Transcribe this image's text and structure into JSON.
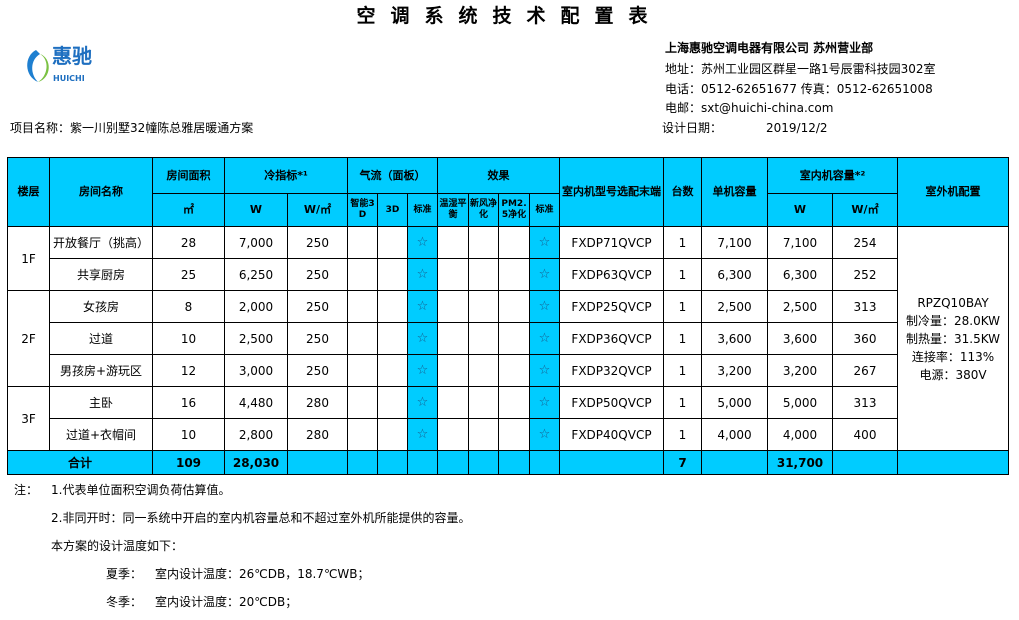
{
  "title": "空调系统技术配置表",
  "logo": {
    "text_cn": "惠驰",
    "text_en": "HUICHI"
  },
  "company": {
    "name": "上海惠驰空调电器有限公司 苏州营业部",
    "address": "地址：苏州工业园区群星一路1号辰雷科技园302室",
    "phone": "电话：0512-62651677 传真：0512-62651008",
    "email": "电邮：sxt@huichi-china.com",
    "date_label": "设计日期：",
    "date": "2019/12/2"
  },
  "project": "项目名称：紫一川别墅32幢陈总雅居暖通方案",
  "header": {
    "floor": "楼层",
    "room": "房间名称",
    "area": "房间面积",
    "area_unit": "㎡",
    "cooling": "冷指标*¹",
    "w": "W",
    "wm2": "W/㎡",
    "airflow": "气流（面板）",
    "smart3d": "智能3D",
    "d3": "3D",
    "std": "标准",
    "effect": "效果",
    "humid": "温湿平衡",
    "fresh": "新风净化",
    "pm25": "PM2.5净化",
    "model": "室内机型号选配末端",
    "qty": "台数",
    "unit_cap": "单机容量",
    "indoor_cap": "室内机容量*²",
    "outdoor": "室外机配置"
  },
  "floors": [
    {
      "name": "1F",
      "rows": 2
    },
    {
      "name": "2F",
      "rows": 3
    },
    {
      "name": "3F",
      "rows": 2
    }
  ],
  "rows": [
    {
      "room": "开放餐厅（挑高）",
      "area": "28",
      "w": "7,000",
      "wm2": "250",
      "std1": "☆",
      "std2": "☆",
      "model": "FXDP71QVCP",
      "qty": "1",
      "unit": "7,100",
      "cap": "7,100",
      "capm2": "254"
    },
    {
      "room": "共享厨房",
      "area": "25",
      "w": "6,250",
      "wm2": "250",
      "std1": "☆",
      "std2": "☆",
      "model": "FXDP63QVCP",
      "qty": "1",
      "unit": "6,300",
      "cap": "6,300",
      "capm2": "252"
    },
    {
      "room": "女孩房",
      "area": "8",
      "w": "2,000",
      "wm2": "250",
      "std1": "☆",
      "std2": "☆",
      "model": "FXDP25QVCP",
      "qty": "1",
      "unit": "2,500",
      "cap": "2,500",
      "capm2": "313"
    },
    {
      "room": "过道",
      "area": "10",
      "w": "2,500",
      "wm2": "250",
      "std1": "☆",
      "std2": "☆",
      "model": "FXDP36QVCP",
      "qty": "1",
      "unit": "3,600",
      "cap": "3,600",
      "capm2": "360"
    },
    {
      "room": "男孩房+游玩区",
      "area": "12",
      "w": "3,000",
      "wm2": "250",
      "std1": "☆",
      "std2": "☆",
      "model": "FXDP32QVCP",
      "qty": "1",
      "unit": "3,200",
      "cap": "3,200",
      "capm2": "267"
    },
    {
      "room": "主卧",
      "area": "16",
      "w": "4,480",
      "wm2": "280",
      "std1": "☆",
      "std2": "☆",
      "model": "FXDP50QVCP",
      "qty": "1",
      "unit": "5,000",
      "cap": "5,000",
      "capm2": "313"
    },
    {
      "room": "过道+衣帽间",
      "area": "10",
      "w": "2,800",
      "wm2": "280",
      "std1": "☆",
      "std2": "☆",
      "model": "FXDP40QVCP",
      "qty": "1",
      "unit": "4,000",
      "cap": "4,000",
      "capm2": "400"
    }
  ],
  "outdoor": [
    "RPZQ10BAY",
    "制冷量：28.0KW",
    "制热量：31.5KW",
    "连接率：113%",
    "电源：380V"
  ],
  "total": {
    "label": "合计",
    "area": "109",
    "w": "28,030",
    "qty": "7",
    "cap": "31,700"
  },
  "notes": {
    "prefix": "注：",
    "n1": "1.代表单位面积空调负荷估算值。",
    "n2": "2.非同开时：同一系统中开启的室内机容量总和不超过室外机所能提供的容量。",
    "n3": "本方案的设计温度如下：",
    "summer_label": "夏季：",
    "summer": "室内设计温度：26℃DB，18.7℃WB；",
    "winter_label": "冬季：",
    "winter": "室内设计温度：20℃DB；"
  },
  "colors": {
    "header_bg": "#00ccff"
  }
}
